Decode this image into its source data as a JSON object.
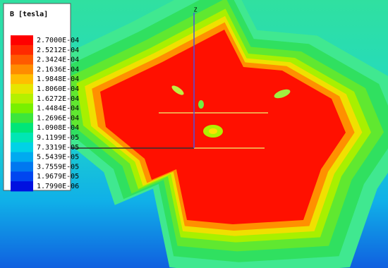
{
  "legend": {
    "title": "B [tesla]",
    "labels": [
      "2.7000E-04",
      "2.5212E-04",
      "2.3424E-04",
      "2.1636E-04",
      "1.9848E-04",
      "1.8060E-04",
      "1.6272E-04",
      "1.4484E-04",
      "1.2696E-04",
      "1.0908E-04",
      "9.1199E-05",
      "7.3319E-05",
      "5.5439E-05",
      "3.7559E-05",
      "1.9679E-05",
      "1.7990E-06"
    ],
    "colors": [
      "#ff0000",
      "#ff2a00",
      "#ff5a00",
      "#ff8c00",
      "#ffbe00",
      "#e6e600",
      "#b4f000",
      "#78f000",
      "#3ce63c",
      "#00e678",
      "#00e6b4",
      "#00d2e6",
      "#00aaf0",
      "#0078f0",
      "#0046f0",
      "#0010e0"
    ]
  },
  "axis": {
    "label": "Z"
  }
}
